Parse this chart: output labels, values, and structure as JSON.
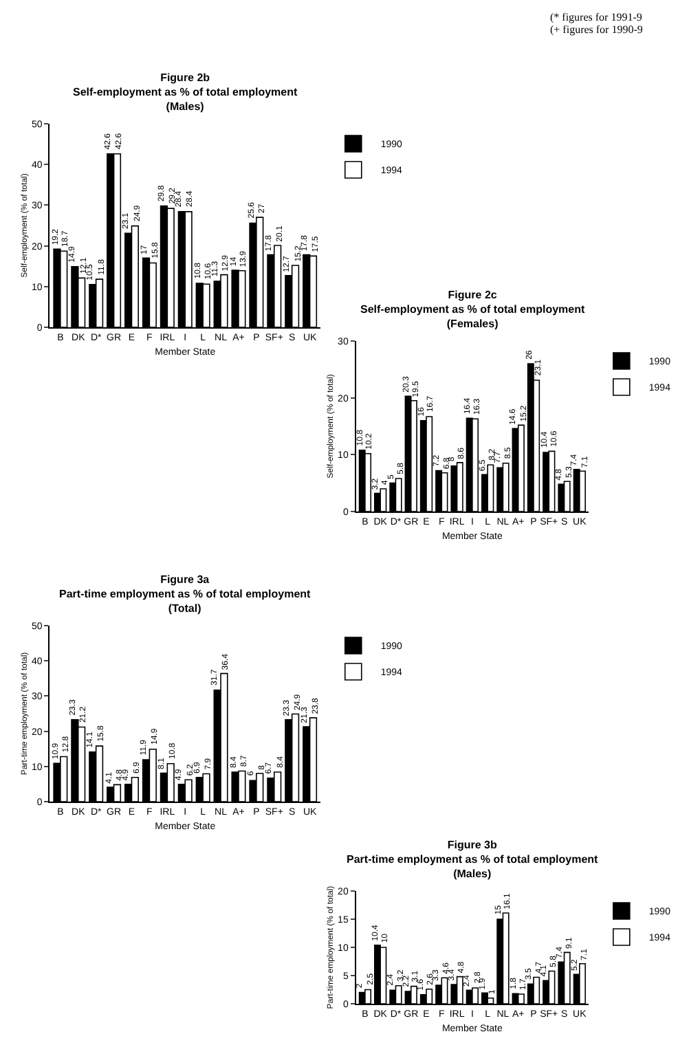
{
  "chart_data": [
    {
      "type": "bar",
      "title": "Figure 2b",
      "subtitle": "Self-employment as % of total employment\n(Males)",
      "xlabel": "Member State",
      "ylabel": "Self-employment (% of total)",
      "categories": [
        "B",
        "DK",
        "D*",
        "GR",
        "E",
        "F",
        "IRL",
        "I",
        "L",
        "NL",
        "A+",
        "P",
        "SF+",
        "S",
        "UK"
      ],
      "series": [
        {
          "name": "1990",
          "color": "#000000",
          "values": [
            19.2,
            14.9,
            10.5,
            42.6,
            23.1,
            17,
            29.8,
            28.4,
            10.8,
            11.3,
            14,
            25.6,
            17.8,
            12.7,
            17.8
          ]
        },
        {
          "name": "1994",
          "color": "#ffffff",
          "values": [
            18.7,
            12.1,
            11.8,
            42.6,
            24.9,
            15.8,
            29.2,
            28.4,
            10.6,
            12.9,
            13.9,
            27,
            20.1,
            15.2,
            17.5
          ]
        }
      ],
      "ylim": [
        0,
        50
      ],
      "yticks": [
        0,
        10,
        20,
        30,
        40,
        50
      ],
      "data_labels": true,
      "legend": "top right",
      "annotations": [
        "(* figures for 1991-9",
        "(+ figures for 1990-9"
      ]
    },
    {
      "type": "bar",
      "title": "Figure 2c",
      "subtitle": "Self-employment as % of total employment\n(Females)",
      "xlabel": "Member State",
      "ylabel": "Self-employment (% of total)",
      "categories": [
        "B",
        "DK",
        "D*",
        "GR",
        "E",
        "F",
        "IRL",
        "I",
        "L",
        "NL",
        "A+",
        "P",
        "SF+",
        "S",
        "UK"
      ],
      "series": [
        {
          "name": "1990",
          "color": "#000000",
          "values": [
            10.8,
            3.2,
            5,
            20.3,
            16,
            7.2,
            8,
            16.4,
            6.5,
            7.7,
            14.6,
            26,
            10.4,
            4.8,
            7.4
          ]
        },
        {
          "name": "1994",
          "color": "#ffffff",
          "values": [
            10.2,
            4,
            5.8,
            19.5,
            16.7,
            6.8,
            8.6,
            16.3,
            8.2,
            8.5,
            15.2,
            23.1,
            10.6,
            5.3,
            7.1
          ]
        }
      ],
      "ylim": [
        0,
        30
      ],
      "yticks": [
        0,
        10,
        20,
        30
      ],
      "data_labels": true,
      "legend": "top right"
    },
    {
      "type": "bar",
      "title": "Figure 3a",
      "subtitle": "Part-time employment as % of total employment\n(Total)",
      "xlabel": "Member State",
      "ylabel": "Part-time employment (% of total)",
      "categories": [
        "B",
        "DK",
        "D*",
        "GR",
        "E",
        "F",
        "IRL",
        "I",
        "L",
        "NL",
        "A+",
        "P",
        "SF+",
        "S",
        "UK"
      ],
      "series": [
        {
          "name": "1990",
          "color": "#000000",
          "values": [
            10.9,
            23.3,
            14.1,
            4.1,
            4.9,
            11.9,
            8.1,
            4.9,
            6.9,
            31.7,
            8.4,
            6,
            6.7,
            23.3,
            21.3
          ]
        },
        {
          "name": "1994",
          "color": "#ffffff",
          "values": [
            12.8,
            21.2,
            15.8,
            4.8,
            6.9,
            14.9,
            10.8,
            6.2,
            7.9,
            36.4,
            8.7,
            8,
            8.4,
            24.9,
            23.8
          ]
        }
      ],
      "ylim": [
        0,
        50
      ],
      "yticks": [
        0,
        10,
        20,
        30,
        40,
        50
      ],
      "data_labels": true,
      "legend": "top right"
    },
    {
      "type": "bar",
      "title": "Figure 3b",
      "subtitle": "Part-time employment as % of total employment\n(Males)",
      "xlabel": "Member State",
      "ylabel": "Part-time employment (% of total)",
      "categories": [
        "B",
        "DK",
        "D*",
        "GR",
        "E",
        "F",
        "IRL",
        "I",
        "L",
        "NL",
        "A+",
        "P",
        "SF+",
        "S",
        "UK"
      ],
      "series": [
        {
          "name": "1990",
          "color": "#000000",
          "values": [
            2,
            10.4,
            2.4,
            2.2,
            1.6,
            3.3,
            3.4,
            2.4,
            1.9,
            15,
            1.8,
            3.5,
            4.1,
            7.4,
            5.2
          ]
        },
        {
          "name": "1994",
          "color": "#ffffff",
          "values": [
            2.5,
            10,
            3.2,
            3.1,
            2.6,
            4.6,
            4.8,
            2.8,
            1,
            16.1,
            1.7,
            4.7,
            5.8,
            9.1,
            7.1
          ]
        }
      ],
      "ylim": [
        0,
        20
      ],
      "yticks": [
        0,
        5,
        10,
        15,
        20
      ],
      "data_labels": true,
      "legend": "top right"
    }
  ]
}
